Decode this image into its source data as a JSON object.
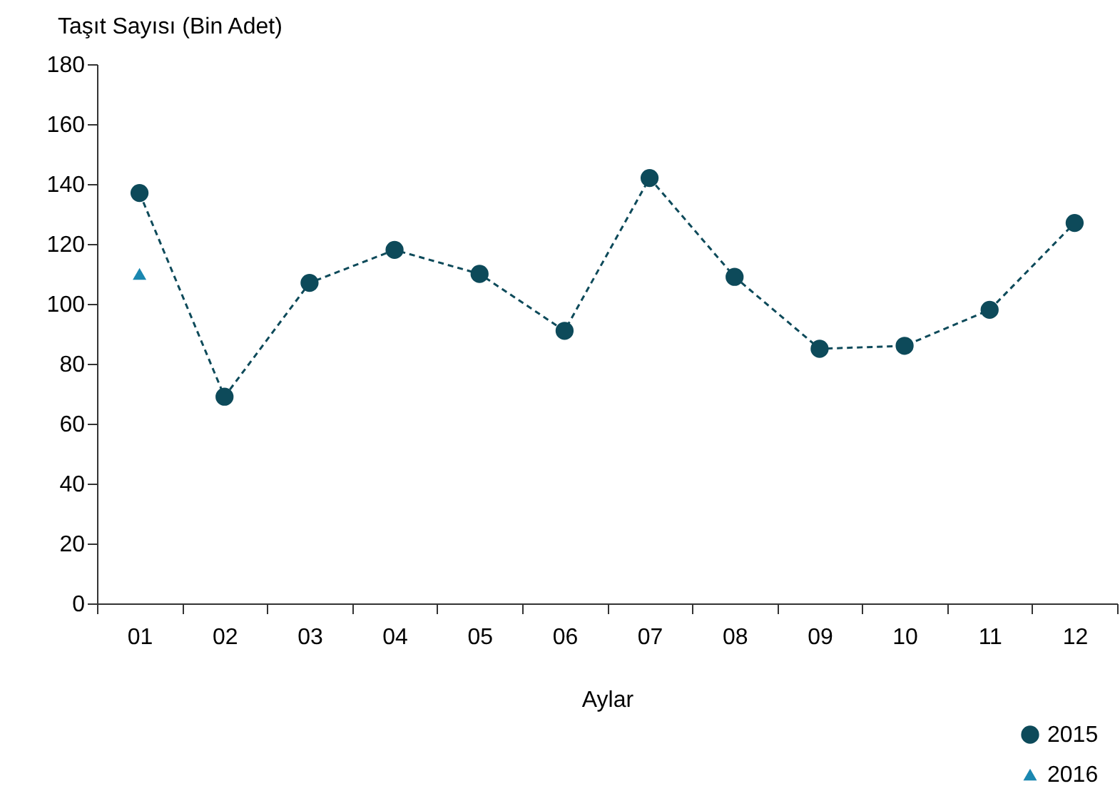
{
  "chart_data": {
    "type": "line",
    "ylabel": "Taşıt Sayısı (Bin Adet)",
    "xlabel": "Aylar",
    "categories": [
      "01",
      "02",
      "03",
      "04",
      "05",
      "06",
      "07",
      "08",
      "09",
      "10",
      "11",
      "12"
    ],
    "series": [
      {
        "name": "2015",
        "color": "#0d4a5a",
        "marker": "circle",
        "line_style": "dashed",
        "values": [
          137,
          69,
          107,
          118,
          110,
          91,
          142,
          109,
          85,
          86,
          98,
          127
        ]
      },
      {
        "name": "2016",
        "type": "scatter",
        "color": "#1a87b0",
        "marker": "triangle",
        "values": [
          110,
          null,
          null,
          null,
          null,
          null,
          null,
          null,
          null,
          null,
          null,
          null
        ]
      }
    ],
    "ylim": [
      0,
      180
    ],
    "yticks": [
      0,
      20,
      40,
      60,
      80,
      100,
      120,
      140,
      160,
      180
    ],
    "grid": false,
    "legend": "bottom right"
  }
}
